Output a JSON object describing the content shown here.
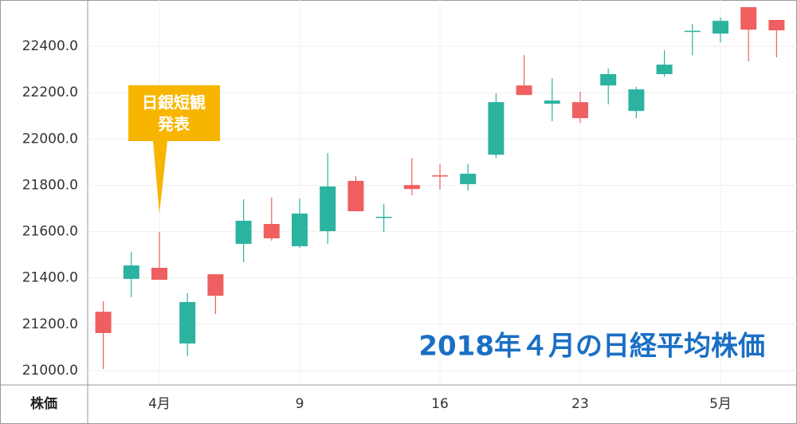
{
  "chart_data": {
    "type": "candlestick",
    "title": "2018年４月の日経平均株価",
    "y_axis_label": "株価",
    "annotation": [
      "日銀短観",
      "発表"
    ],
    "categories": [
      null,
      null,
      "4月",
      null,
      null,
      null,
      null,
      "9",
      null,
      null,
      null,
      null,
      "16",
      null,
      null,
      null,
      null,
      "23",
      null,
      null,
      null,
      null,
      "5月",
      null,
      null
    ],
    "open": [
      21254,
      21396,
      21444,
      21117,
      21416,
      21547,
      21633,
      21537,
      21602,
      21819,
      21662,
      21801,
      21843,
      21805,
      21932,
      22231,
      22152,
      22159,
      22231,
      22121,
      22280,
      22465,
      22455,
      22569,
      22514
    ],
    "high": [
      21299,
      21513,
      21599,
      21334,
      21416,
      21740,
      21746,
      21743,
      21939,
      21839,
      21719,
      21918,
      21891,
      21891,
      22197,
      22362,
      22262,
      22204,
      22304,
      22225,
      22383,
      22496,
      22524,
      22569,
      22514
    ],
    "low": [
      21007,
      21317,
      21392,
      21062,
      21244,
      21468,
      21561,
      21530,
      21547,
      21688,
      21599,
      21757,
      21781,
      21777,
      21918,
      22190,
      22077,
      22070,
      22149,
      22090,
      22269,
      22362,
      22417,
      22335,
      22352
    ],
    "close": [
      21162,
      21454,
      21392,
      21296,
      21323,
      21647,
      21571,
      21678,
      21795,
      21688,
      21664,
      21784,
      21840,
      21850,
      22159,
      22190,
      22166,
      22090,
      22280,
      22214,
      22321,
      22467,
      22510,
      22472,
      22469
    ],
    "up_color": "#2bb3a0",
    "down_color": "#ef5f5f",
    "ylim": [
      20938,
      22600
    ],
    "yticks": [
      {
        "value": 21000,
        "label": "21000.0"
      },
      {
        "value": 21200,
        "label": "21200.0"
      },
      {
        "value": 21400,
        "label": "21400.0"
      },
      {
        "value": 21600,
        "label": "21600.0"
      },
      {
        "value": 21800,
        "label": "21800.0"
      },
      {
        "value": 22000,
        "label": "22000.0"
      },
      {
        "value": 22200,
        "label": "22200.0"
      },
      {
        "value": 22400,
        "label": "22400.0"
      }
    ],
    "grid": true
  }
}
